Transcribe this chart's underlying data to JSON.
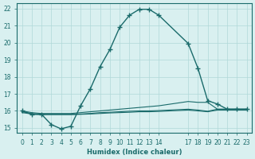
{
  "line1_x": [
    0,
    1,
    2,
    3,
    4,
    5,
    6,
    7,
    8,
    9,
    10,
    11,
    12,
    13,
    14,
    17,
    18,
    19,
    20,
    21,
    22,
    23
  ],
  "line1_y": [
    16.0,
    15.8,
    15.8,
    15.2,
    14.95,
    15.1,
    16.3,
    17.3,
    18.6,
    19.6,
    20.9,
    21.6,
    21.95,
    21.95,
    21.6,
    19.95,
    18.5,
    16.6,
    16.4,
    16.1,
    16.1,
    16.1
  ],
  "line2_x": [
    0,
    1,
    2,
    3,
    4,
    5,
    6,
    7,
    8,
    9,
    10,
    11,
    12,
    13,
    14,
    17,
    18,
    19,
    20,
    21,
    22,
    23
  ],
  "line2_y": [
    16.0,
    15.9,
    15.85,
    15.85,
    15.85,
    15.85,
    15.9,
    15.95,
    16.0,
    16.05,
    16.1,
    16.15,
    16.2,
    16.25,
    16.3,
    16.55,
    16.5,
    16.5,
    16.1,
    16.1,
    16.1,
    16.1
  ],
  "line3_x": [
    0,
    1,
    2,
    3,
    4,
    5,
    6,
    7,
    8,
    9,
    10,
    11,
    12,
    13,
    14,
    17,
    18,
    19,
    20,
    21,
    22,
    23
  ],
  "line3_y": [
    15.95,
    15.85,
    15.8,
    15.8,
    15.8,
    15.8,
    15.82,
    15.85,
    15.9,
    15.92,
    15.95,
    15.98,
    16.0,
    16.0,
    16.02,
    16.1,
    16.05,
    15.98,
    16.1,
    16.1,
    16.1,
    16.1
  ],
  "line4_x": [
    0,
    1,
    2,
    3,
    4,
    5,
    6,
    7,
    8,
    9,
    10,
    11,
    12,
    13,
    14,
    17,
    18,
    19,
    20,
    21,
    22,
    23
  ],
  "line4_y": [
    15.9,
    15.82,
    15.78,
    15.78,
    15.78,
    15.78,
    15.8,
    15.82,
    15.85,
    15.88,
    15.9,
    15.92,
    15.95,
    15.95,
    15.97,
    16.05,
    16.0,
    15.95,
    16.05,
    16.05,
    16.05,
    16.05
  ],
  "line_color": "#1a6b6b",
  "bg_color": "#d9f0f0",
  "grid_color": "#b0d8d8",
  "xlabel": "Humidex (Indice chaleur)",
  "ylabel": "",
  "xlim": [
    -0.5,
    23.5
  ],
  "ylim": [
    14.7,
    22.3
  ],
  "yticks": [
    15,
    16,
    17,
    18,
    19,
    20,
    21,
    22
  ],
  "xticks": [
    0,
    1,
    2,
    3,
    4,
    5,
    6,
    7,
    8,
    9,
    10,
    11,
    12,
    13,
    14,
    17,
    18,
    19,
    20,
    21,
    22,
    23
  ],
  "xtick_labels": [
    "0",
    "1",
    "2",
    "3",
    "4",
    "5",
    "6",
    "7",
    "8",
    "9",
    "10",
    "11",
    "12",
    "13",
    "14",
    "17",
    "18",
    "19",
    "20",
    "21",
    "22",
    "23"
  ]
}
